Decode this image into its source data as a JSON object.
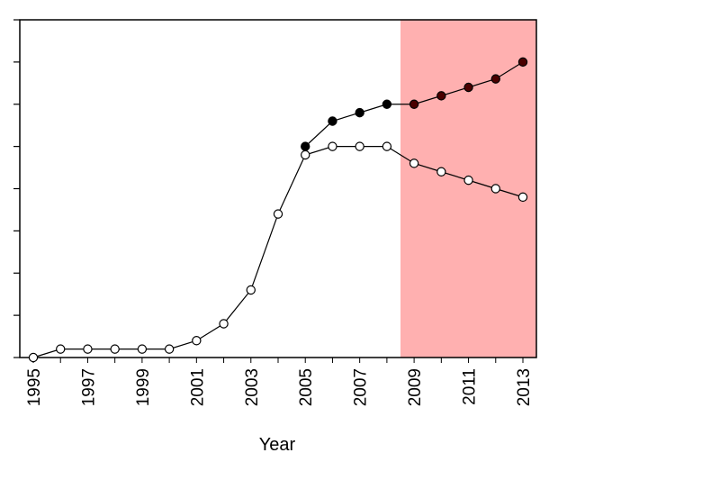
{
  "chart_data": {
    "type": "line",
    "title": "",
    "xlabel": "Year",
    "ylabel": "",
    "xlim": [
      1995,
      2013
    ],
    "ylim": [
      0,
      8
    ],
    "grid": false,
    "x_ticks": [
      1995,
      1997,
      1999,
      2001,
      2003,
      2005,
      2007,
      2009,
      2011,
      2013
    ],
    "shaded_region": {
      "x_start": 2008.5,
      "x_end": 2013.5,
      "color": "#ffb0b0"
    },
    "series": [
      {
        "marker": "filled",
        "color": "#000000",
        "projected_color": "#4a0000",
        "x": [
          2005,
          2006,
          2007,
          2008,
          2009,
          2010,
          2011,
          2012,
          2013
        ],
        "y": [
          5.0,
          5.6,
          5.8,
          6.0,
          6.0,
          6.2,
          6.4,
          6.6,
          7.0
        ]
      },
      {
        "marker": "open",
        "color": "#000000",
        "x": [
          1995,
          1996,
          1997,
          1998,
          1999,
          2000,
          2001,
          2002,
          2003,
          2004,
          2005,
          2006,
          2007,
          2008,
          2009,
          2010,
          2011,
          2012,
          2013
        ],
        "y": [
          0.0,
          0.2,
          0.2,
          0.2,
          0.2,
          0.2,
          0.4,
          0.8,
          1.6,
          3.4,
          4.8,
          5.0,
          5.0,
          5.0,
          4.6,
          4.4,
          4.2,
          4.0,
          3.8
        ]
      }
    ]
  }
}
